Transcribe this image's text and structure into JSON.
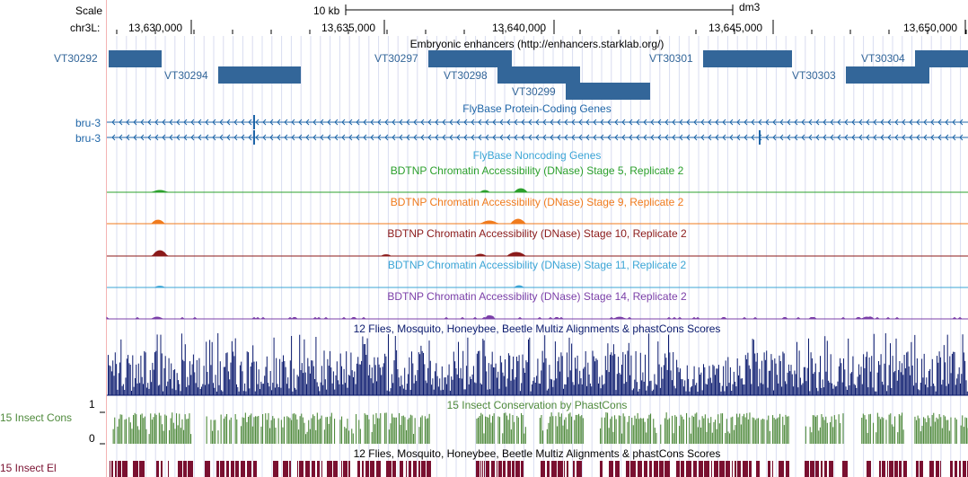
{
  "ruler": {
    "scale_label": "Scale",
    "scale_value": "10 kb",
    "assembly": "dm3",
    "chrom_label": "chr3L:",
    "ticks": [
      "13,630,000",
      "13,635,000",
      "13,640,000",
      "13,645,000",
      "13,650,000"
    ]
  },
  "tracks": {
    "enhancers": {
      "title": "Embryonic enhancers (http://enhancers.starklab.org/)",
      "color": "#336699",
      "features": [
        "VT30292",
        "VT30294",
        "VT30297",
        "VT30298",
        "VT30299",
        "VT30301",
        "VT30303",
        "VT30304"
      ]
    },
    "flybase_coding": {
      "title": "FlyBase Protein-Coding Genes",
      "color": "#1f66a8",
      "genes": [
        "bru-3",
        "bru-3"
      ]
    },
    "flybase_noncoding": {
      "title": "FlyBase Noncoding Genes",
      "color": "#1f66a8"
    },
    "dnase": [
      {
        "title": "BDTNP Chromatin Accessibility (DNase) Stage 5, Replicate 2",
        "color": "#2ca02c"
      },
      {
        "title": "BDTNP Chromatin Accessibility (DNase) Stage 9, Replicate 2",
        "color": "#f07b1d"
      },
      {
        "title": "BDTNP Chromatin Accessibility (DNase) Stage 10, Replicate 2",
        "color": "#8b1a1a"
      },
      {
        "title": "BDTNP Chromatin Accessibility (DNase) Stage 11, Replicate 2",
        "color": "#3ba5d6"
      },
      {
        "title": "BDTNP Chromatin Accessibility (DNase) Stage 14, Replicate 2",
        "color": "#7b3fa8"
      }
    ],
    "multiz": {
      "title": "12 Flies, Mosquito, Honeybee, Beetle Multiz Alignments & phastCons Scores",
      "color": "#0a1a6e"
    },
    "phastcons": {
      "title": "15 Insect Conservation by PhastCons",
      "side_label": "15 Insect Cons",
      "ymax": "1",
      "ymin": "0",
      "color": "#4f8a3c"
    },
    "elements": {
      "title": "12 Flies, Mosquito, Honeybee, Beetle Multiz Alignments & phastCons Scores",
      "side_label": "15 Insect El",
      "color": "#7a1030"
    }
  }
}
